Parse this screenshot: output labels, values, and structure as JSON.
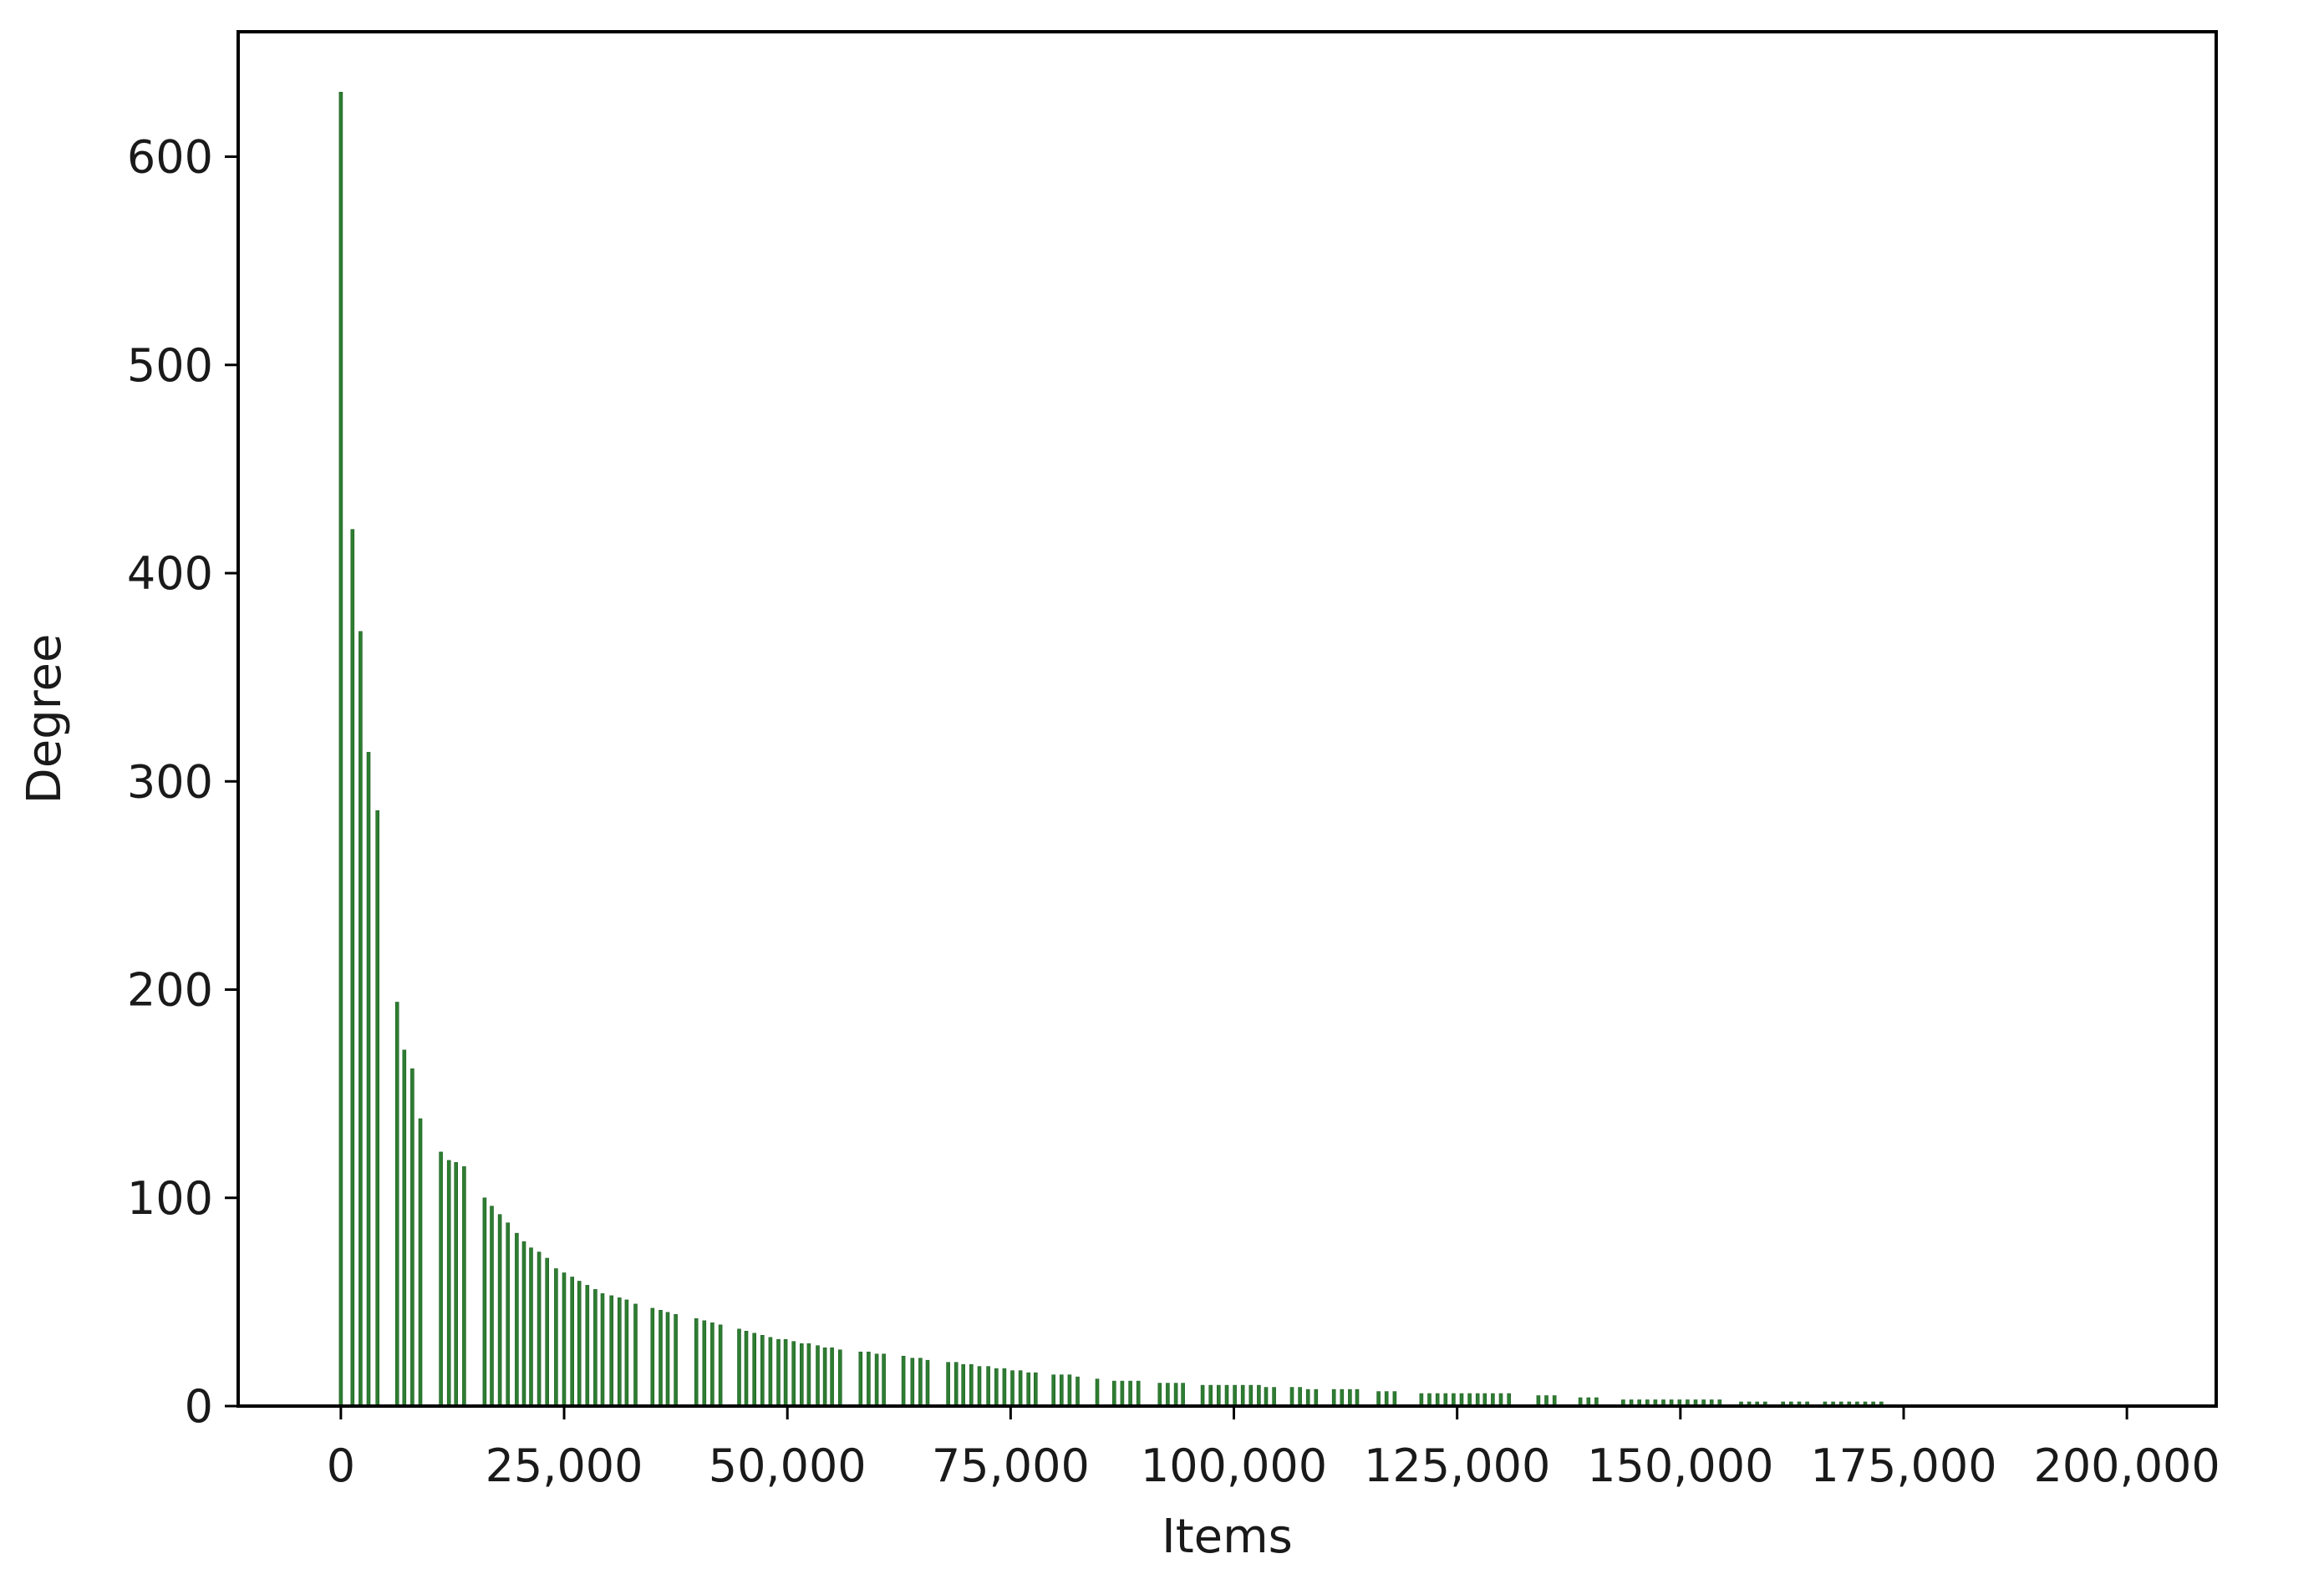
{
  "chart_data": {
    "type": "bar",
    "title": "",
    "xlabel": "Items",
    "ylabel": "Degree",
    "xlim": [
      -11500,
      210000
    ],
    "ylim": [
      0,
      660
    ],
    "x_ticks": [
      0,
      25000,
      50000,
      75000,
      100000,
      125000,
      150000,
      175000,
      200000
    ],
    "x_tick_labels": [
      "0",
      "25,000",
      "50,000",
      "75,000",
      "100,000",
      "125,000",
      "150,000",
      "175,000",
      "200,000"
    ],
    "y_ticks": [
      0,
      100,
      200,
      300,
      400,
      500,
      600
    ],
    "y_tick_labels": [
      "0",
      "100",
      "200",
      "300",
      "400",
      "500",
      "600"
    ],
    "grid": false,
    "legend": "none",
    "bar_color": "#2e7d32",
    "bar_edge_color": "#1b5e20",
    "x": [
      0,
      1300,
      2200,
      3100,
      4100,
      6300,
      7100,
      8000,
      8900,
      11200,
      12100,
      12900,
      13800,
      16100,
      16900,
      17800,
      18700,
      19700,
      20500,
      21300,
      22200,
      23100,
      24100,
      25000,
      25900,
      26700,
      27600,
      28500,
      29300,
      30300,
      31200,
      32000,
      33000,
      34900,
      35800,
      36600,
      37500,
      39800,
      40700,
      41600,
      42500,
      44600,
      45400,
      46300,
      47200,
      48100,
      49000,
      49800,
      50700,
      51600,
      52400,
      53400,
      54200,
      55000,
      55900,
      58200,
      59100,
      60000,
      60800,
      63000,
      64000,
      64900,
      65700,
      68000,
      68900,
      69700,
      70600,
      71500,
      72500,
      73400,
      74300,
      75200,
      76100,
      77000,
      77800,
      79800,
      80700,
      81600,
      82500,
      84700,
      86600,
      87500,
      88400,
      89300,
      91700,
      92600,
      93500,
      94300,
      96500,
      97400,
      98300,
      99200,
      100100,
      101000,
      101900,
      102800,
      103600,
      104500,
      106500,
      107400,
      108300,
      109200,
      111200,
      112100,
      113000,
      113800,
      116200,
      117100,
      118000,
      121000,
      121900,
      122800,
      123700,
      124600,
      125500,
      126400,
      127300,
      128100,
      129000,
      129900,
      130800,
      134100,
      135000,
      135900,
      138800,
      139700,
      140600,
      143600,
      144500,
      145400,
      146300,
      147200,
      148100,
      149000,
      149900,
      150800,
      151700,
      152600,
      153500,
      154400,
      156800,
      157700,
      158600,
      159500,
      161500,
      162400,
      163300,
      164200,
      166200,
      167100,
      168000,
      168900,
      169800,
      170700,
      171600,
      172500
    ],
    "values": [
      631,
      421,
      372,
      314,
      286,
      194,
      171,
      162,
      138,
      122,
      118,
      117,
      115,
      100,
      96,
      92,
      88,
      83,
      79,
      76,
      74,
      71,
      66,
      64,
      62,
      60,
      58,
      56,
      54,
      53,
      52,
      51,
      49,
      47,
      46,
      45,
      44,
      42,
      41,
      40,
      39,
      37,
      36,
      35,
      34,
      33,
      32,
      32,
      31,
      30,
      30,
      29,
      28,
      28,
      27,
      26,
      26,
      25,
      25,
      24,
      23,
      23,
      22,
      21,
      21,
      20,
      20,
      19,
      19,
      18,
      18,
      17,
      17,
      16,
      16,
      15,
      15,
      15,
      14,
      13,
      12,
      12,
      12,
      12,
      11,
      11,
      11,
      11,
      10,
      10,
      10,
      10,
      10,
      10,
      10,
      10,
      9,
      9,
      9,
      9,
      8,
      8,
      8,
      8,
      8,
      8,
      7,
      7,
      7,
      6,
      6,
      6,
      6,
      6,
      6,
      6,
      6,
      6,
      6,
      6,
      6,
      5,
      5,
      5,
      4,
      4,
      4,
      3,
      3,
      3,
      3,
      3,
      3,
      3,
      3,
      3,
      3,
      3,
      3,
      3,
      2,
      2,
      2,
      2,
      2,
      2,
      2,
      2,
      2,
      2,
      2,
      2,
      2,
      2,
      2,
      2
    ]
  }
}
